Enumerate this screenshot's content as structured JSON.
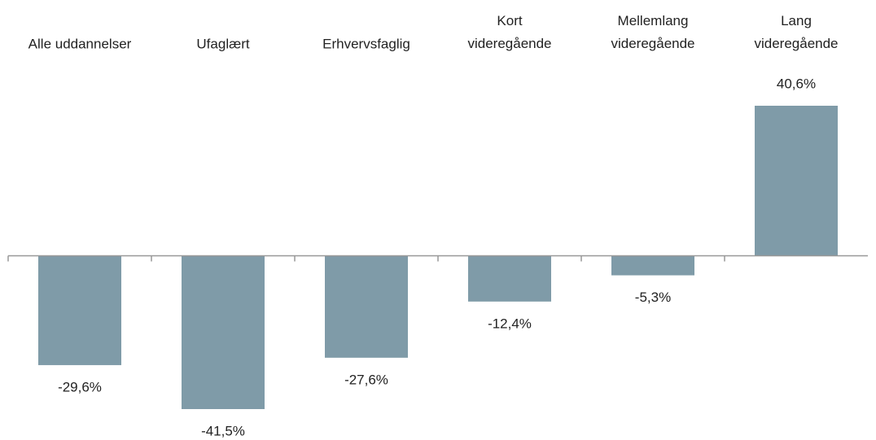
{
  "chart_data": {
    "type": "bar",
    "categories": [
      "Alle uddannelser",
      "Ufaglært",
      "Erhvervsfaglig",
      "Kort\nvideregående",
      "Mellemlang\nvideregående",
      "Lang\nvideregående"
    ],
    "values": [
      -29.6,
      -41.5,
      -27.6,
      -12.4,
      -5.3,
      40.6
    ],
    "value_labels": [
      "-29,6%",
      "-41,5%",
      "-27,6%",
      "-12,4%",
      "-5,3%",
      "40,6%"
    ],
    "color": "#7f9ba8"
  }
}
